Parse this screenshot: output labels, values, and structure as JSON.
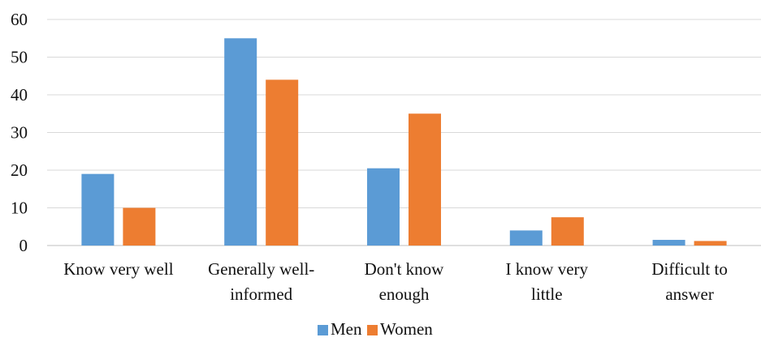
{
  "chart_data": {
    "type": "bar",
    "title": "",
    "xlabel": "",
    "ylabel": "",
    "ylim": [
      0,
      60
    ],
    "yticks": [
      0,
      10,
      20,
      30,
      40,
      50,
      60
    ],
    "grid": true,
    "legend_position": "bottom",
    "categories": [
      [
        "Know very well"
      ],
      [
        "Generally well-",
        "informed"
      ],
      [
        "Don't know",
        "enough"
      ],
      [
        "I know very",
        "little"
      ],
      [
        "Difficult to",
        "answer"
      ]
    ],
    "series": [
      {
        "name": "Men",
        "color": "#5b9bd5",
        "values": [
          19,
          55,
          20.5,
          4,
          1.5
        ]
      },
      {
        "name": "Women",
        "color": "#ed7d31",
        "values": [
          10,
          44,
          35,
          7.5,
          1.2
        ]
      }
    ]
  }
}
